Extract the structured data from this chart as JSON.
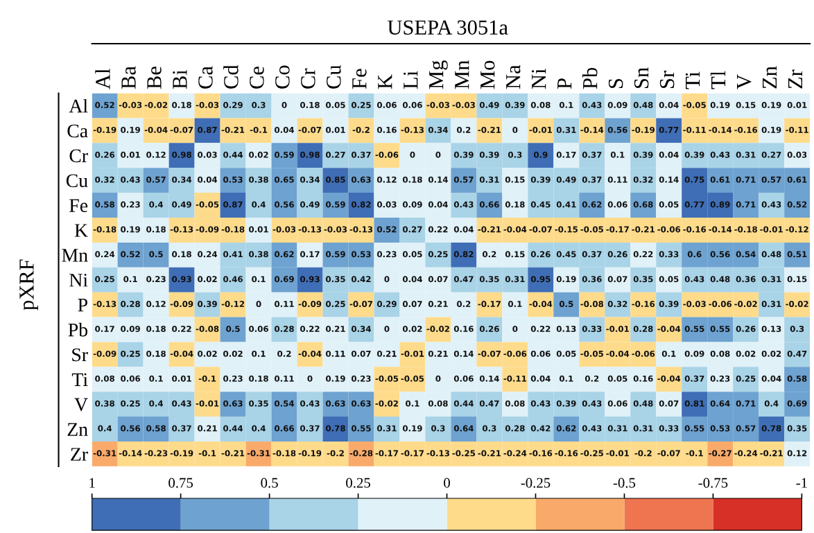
{
  "chart_data": {
    "type": "heatmap",
    "title": "USEPA 3051a",
    "ylabel": "pXRF",
    "categories": [
      "Al",
      "Ba",
      "Be",
      "Bi",
      "Ca",
      "Cd",
      "Ce",
      "Co",
      "Cr",
      "Cu",
      "Fe",
      "K",
      "Li",
      "Mg",
      "Mn",
      "Mo",
      "Na",
      "Ni",
      "P",
      "Pb",
      "S",
      "Sn",
      "Sr",
      "Ti",
      "Tl",
      "V",
      "Zn",
      "Zr"
    ],
    "y_categories": [
      "Al",
      "Ca",
      "Cr",
      "Cu",
      "Fe",
      "K",
      "Mn",
      "Ni",
      "P",
      "Pb",
      "Sr",
      "Ti",
      "V",
      "Zn",
      "Zr"
    ],
    "cells": [
      [
        0.52,
        -0.03,
        -0.02,
        0.18,
        -0.03,
        0.29,
        0.3,
        0,
        0.18,
        0.05,
        0.25,
        0.06,
        0.06,
        -0.03,
        -0.03,
        0.49,
        0.39,
        0.08,
        0.1,
        0.43,
        0.09,
        0.48,
        0.04,
        -0.05,
        0.19,
        0.15,
        0.19,
        0.01
      ],
      [
        -0.19,
        0.19,
        -0.04,
        -0.07,
        0.87,
        -0.21,
        -0.1,
        0.04,
        -0.07,
        0.01,
        -0.2,
        0.16,
        -0.13,
        0.34,
        0.2,
        -0.21,
        0,
        -0.01,
        0.31,
        -0.14,
        0.56,
        -0.19,
        0.77,
        -0.11,
        -0.14,
        -0.16,
        0.19,
        -0.11
      ],
      [
        0.26,
        0.01,
        0.12,
        0.98,
        0.03,
        0.44,
        0.02,
        0.59,
        0.98,
        0.27,
        0.37,
        -0.06,
        0,
        0,
        0.39,
        0.39,
        0.3,
        0.9,
        0.17,
        0.37,
        0.1,
        0.39,
        0.04,
        0.39,
        0.43,
        0.31,
        0.27,
        0.03
      ],
      [
        0.32,
        0.43,
        0.57,
        0.34,
        0.04,
        0.53,
        0.38,
        0.65,
        0.34,
        0.85,
        0.63,
        0.12,
        0.18,
        0.14,
        0.57,
        0.31,
        0.15,
        0.39,
        0.49,
        0.37,
        0.11,
        0.32,
        0.14,
        0.75,
        0.61,
        0.71,
        0.57,
        0.61
      ],
      [
        0.58,
        0.23,
        0.4,
        0.49,
        -0.05,
        0.87,
        0.4,
        0.56,
        0.49,
        0.59,
        0.82,
        0.03,
        0.09,
        0.04,
        0.43,
        0.66,
        0.18,
        0.45,
        0.41,
        0.62,
        0.06,
        0.68,
        0.05,
        0.77,
        0.89,
        0.71,
        0.43,
        0.52
      ],
      [
        -0.18,
        0.19,
        0.18,
        -0.13,
        -0.09,
        -0.18,
        0.01,
        -0.03,
        -0.13,
        -0.03,
        -0.13,
        0.52,
        0.27,
        0.22,
        0.04,
        -0.21,
        -0.04,
        -0.07,
        -0.15,
        -0.05,
        -0.17,
        -0.21,
        -0.06,
        -0.16,
        -0.14,
        -0.18,
        -0.01,
        -0.12
      ],
      [
        0.24,
        0.52,
        0.5,
        0.18,
        0.24,
        0.41,
        0.38,
        0.62,
        0.17,
        0.59,
        0.53,
        0.23,
        0.05,
        0.25,
        0.82,
        0.2,
        0.15,
        0.26,
        0.45,
        0.37,
        0.26,
        0.22,
        0.33,
        0.6,
        0.56,
        0.54,
        0.48,
        0.51
      ],
      [
        0.25,
        0.1,
        0.23,
        0.93,
        0.02,
        0.46,
        0.1,
        0.69,
        0.93,
        0.35,
        0.42,
        0,
        0.04,
        0.07,
        0.47,
        0.35,
        0.31,
        0.95,
        0.19,
        0.36,
        0.07,
        0.35,
        0.05,
        0.43,
        0.48,
        0.36,
        0.31,
        0.15
      ],
      [
        -0.13,
        0.28,
        0.12,
        -0.09,
        0.39,
        -0.12,
        0,
        0.11,
        -0.09,
        0.25,
        -0.07,
        0.29,
        0.07,
        0.21,
        0.2,
        -0.17,
        0.1,
        -0.04,
        0.5,
        -0.08,
        0.32,
        -0.16,
        0.39,
        -0.03,
        -0.06,
        -0.02,
        0.31,
        -0.02
      ],
      [
        0.17,
        0.09,
        0.18,
        0.22,
        -0.08,
        0.5,
        0.06,
        0.28,
        0.22,
        0.21,
        0.34,
        0,
        0.02,
        -0.02,
        0.16,
        0.26,
        0,
        0.22,
        0.13,
        0.33,
        -0.01,
        0.28,
        -0.04,
        0.55,
        0.55,
        0.26,
        0.13,
        0.3
      ],
      [
        -0.09,
        0.25,
        0.18,
        -0.04,
        0.02,
        0.02,
        0.1,
        0.2,
        -0.04,
        0.11,
        0.07,
        0.21,
        -0.01,
        0.21,
        0.14,
        -0.07,
        -0.06,
        0.06,
        0.05,
        -0.05,
        -0.04,
        -0.06,
        0.1,
        0.09,
        0.08,
        0.02,
        0.02,
        0.47
      ],
      [
        0.08,
        0.06,
        0.1,
        0.01,
        -0.1,
        0.23,
        0.18,
        0.11,
        0,
        0.19,
        0.23,
        -0.05,
        -0.05,
        0,
        0.06,
        0.14,
        -0.11,
        0.04,
        0.1,
        0.2,
        0.05,
        0.16,
        -0.04,
        0.37,
        0.23,
        0.25,
        0.04,
        0.58
      ],
      [
        0.38,
        0.25,
        0.4,
        0.43,
        -0.01,
        0.63,
        0.35,
        0.54,
        0.43,
        0.63,
        0.63,
        -0.02,
        0.1,
        0.08,
        0.44,
        0.47,
        0.08,
        0.43,
        0.39,
        0.43,
        0.06,
        0.48,
        0.07,
        0.81,
        0.64,
        0.71,
        0.4,
        0.69
      ],
      [
        0.4,
        0.56,
        0.58,
        0.37,
        0.21,
        0.44,
        0.4,
        0.66,
        0.37,
        0.78,
        0.55,
        0.31,
        0.19,
        0.3,
        0.64,
        0.3,
        0.28,
        0.42,
        0.62,
        0.43,
        0.31,
        0.31,
        0.33,
        0.55,
        0.53,
        0.57,
        0.78,
        0.35
      ],
      [
        -0.31,
        -0.14,
        -0.23,
        -0.19,
        -0.1,
        -0.21,
        -0.31,
        -0.18,
        -0.19,
        -0.2,
        -0.28,
        -0.17,
        -0.17,
        -0.13,
        -0.25,
        -0.21,
        -0.24,
        -0.16,
        -0.16,
        -0.25,
        -0.01,
        -0.2,
        -0.07,
        -0.1,
        -0.27,
        -0.24,
        -0.21,
        0.12
      ]
    ],
    "data_labels": true,
    "clim": [
      1,
      -1
    ],
    "cticks": [
      1,
      0.75,
      0.5,
      0.25,
      0,
      -0.25,
      -0.5,
      -0.75,
      -1
    ],
    "colors": [
      "#3f6eb6",
      "#6ea2d0",
      "#a9d3e7",
      "#e0f1f8",
      "#fedb8b",
      "#f9aa6a",
      "#ef7450",
      "#d73027"
    ]
  }
}
